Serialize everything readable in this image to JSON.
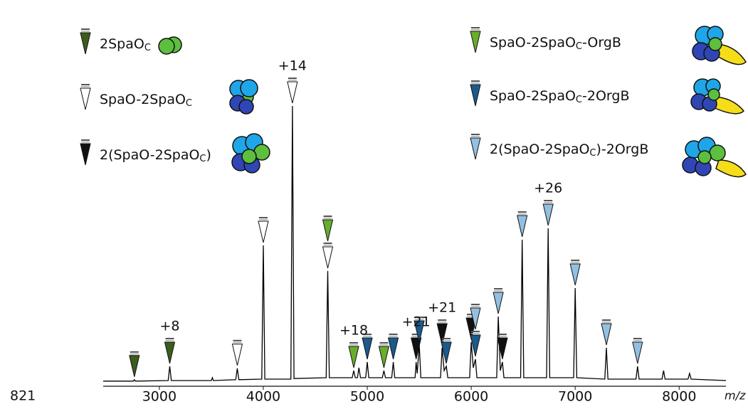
{
  "chart_data": {
    "type": "line",
    "panel_label": "821",
    "x_label": "m/z",
    "xlim": [
      2460,
      8450
    ],
    "ylim": [
      0,
      100
    ],
    "xticks": [
      3000,
      4000,
      5000,
      6000,
      7000,
      8000
    ],
    "line_color": "#000000",
    "x": [
      2460,
      2750,
      2760,
      2770,
      3085,
      3100,
      3115,
      3500,
      3510,
      3520,
      3735,
      3750,
      3765,
      3985,
      4000,
      4015,
      4265,
      4280,
      4295,
      4605,
      4620,
      4635,
      4855,
      4870,
      4885,
      4905,
      4920,
      4935,
      4985,
      5000,
      5015,
      5145,
      5160,
      5175,
      5235,
      5250,
      5265,
      5460,
      5470,
      5480,
      5500,
      5515,
      5705,
      5720,
      5740,
      5760,
      5775,
      5985,
      6000,
      6020,
      6040,
      6055,
      6245,
      6260,
      6280,
      6300,
      6315,
      6475,
      6490,
      6505,
      6725,
      6740,
      6755,
      6985,
      7000,
      7015,
      7285,
      7300,
      7315,
      7585,
      7600,
      7615,
      7835,
      7850,
      7865,
      8085,
      8100,
      8115,
      8450
    ],
    "y": [
      0.3,
      0.3,
      0.8,
      0.3,
      0.5,
      5.5,
      0.5,
      0.5,
      1.5,
      0.5,
      0.8,
      4.8,
      0.8,
      1,
      48,
      1,
      1,
      97,
      1.2,
      1.5,
      39,
      1.5,
      1.5,
      4,
      1.5,
      1.5,
      5,
      1.5,
      1.5,
      7,
      1.5,
      1.5,
      4,
      1.5,
      1.5,
      7,
      1.5,
      1.5,
      7,
      3,
      13,
      1.5,
      1.5,
      12,
      4,
      5.5,
      1.5,
      1.5,
      14,
      5,
      8,
      1.5,
      1.5,
      23,
      4,
      7,
      1.5,
      1.5,
      50,
      1.5,
      1.5,
      54,
      1.5,
      1.5,
      33,
      1.5,
      1,
      12,
      1,
      1,
      5.5,
      1,
      1,
      4,
      1,
      1,
      3,
      1,
      0.5
    ],
    "series": [
      {
        "name": [
          "2SpaO",
          "C"
        ],
        "color": "#3b5e1c",
        "markers": [
          2760,
          3100
        ]
      },
      {
        "name": [
          "SpaO-2SpaO",
          "C"
        ],
        "color": "#ffffff",
        "markers": [
          3750,
          4000,
          4280,
          4620
        ]
      },
      {
        "name": [
          "2(SpaO-2SpaO",
          "C",
          ")"
        ],
        "color": "#111111",
        "markers": [
          5470,
          5720,
          6000,
          6300
        ]
      },
      {
        "name": [
          "SpaO-2SpaO",
          "C",
          "-OrgB"
        ],
        "color": "#6aad2c",
        "markers": [
          4620,
          4870,
          5160
        ]
      },
      {
        "name": [
          "SpaO-2SpaO",
          "C",
          "-2OrgB"
        ],
        "color": "#1b5b8c",
        "markers": [
          5000,
          5250,
          5500,
          5760,
          6040
        ]
      },
      {
        "name": [
          "2(SpaO-2SpaO",
          "C",
          ")-2OrgB"
        ],
        "color": "#93c0e0",
        "markers": [
          6040,
          6260,
          6490,
          6740,
          7000,
          7300,
          7600
        ]
      }
    ],
    "annotations": [
      {
        "x": 3100,
        "text": "+8"
      },
      {
        "x": 4280,
        "text": "+14"
      },
      {
        "x": 4870,
        "text": "+18"
      },
      {
        "x": 5470,
        "text": "+21"
      },
      {
        "x": 5720,
        "text": "+21"
      },
      {
        "x": 6740,
        "text": "+26"
      }
    ]
  }
}
